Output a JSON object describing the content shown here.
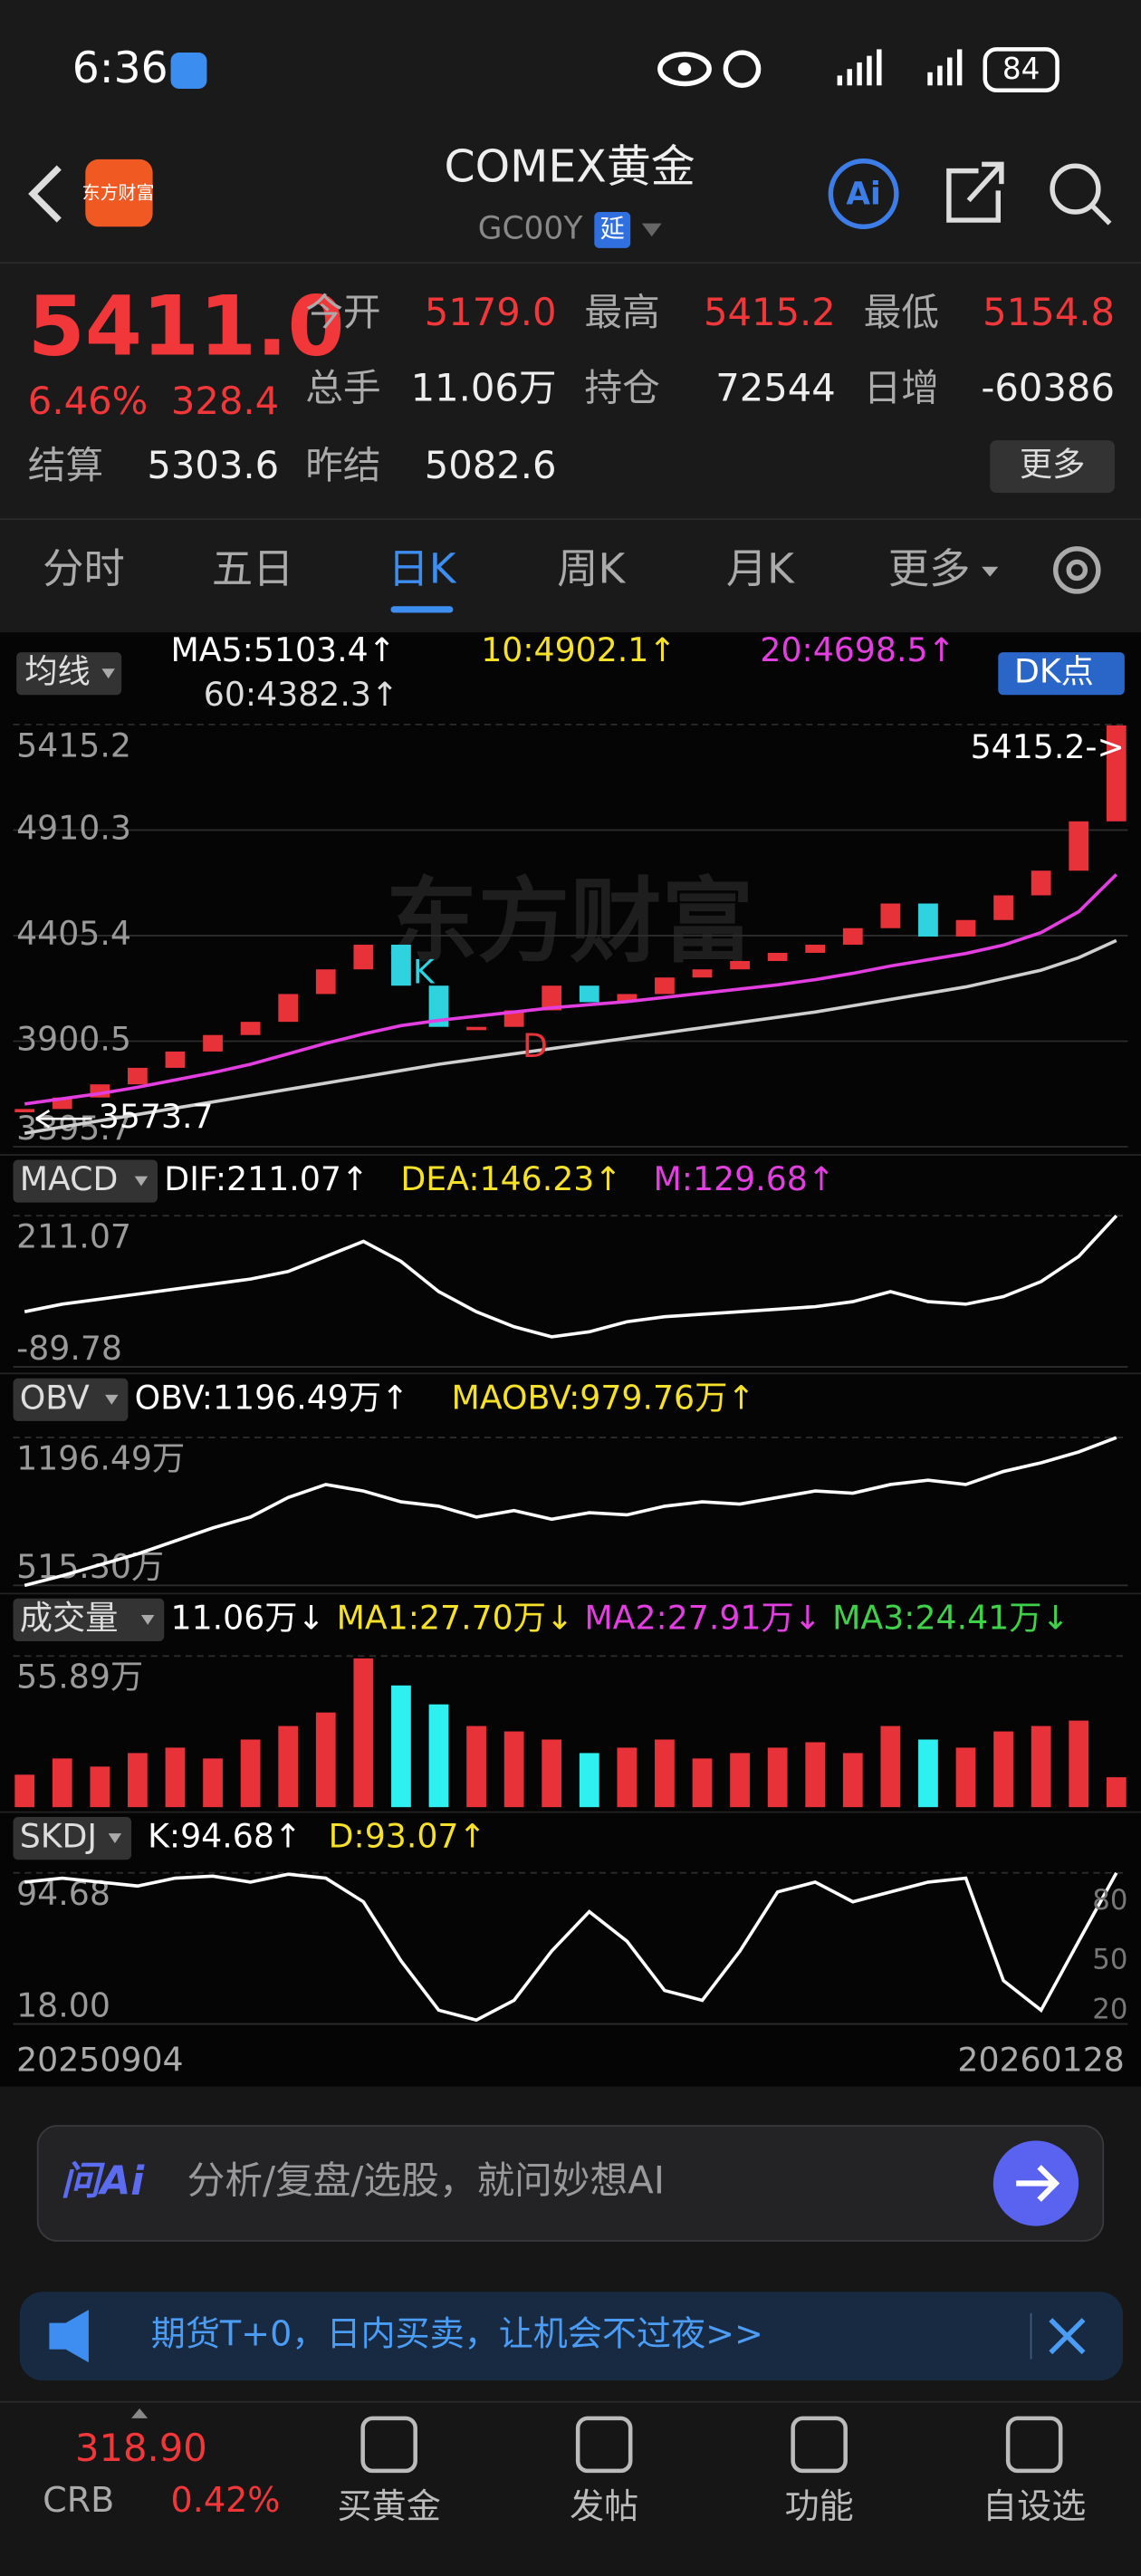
{
  "status_bar": {
    "time": "6:36",
    "battery": "84"
  },
  "header": {
    "logo": "东方财富",
    "title": "COMEX黄金",
    "code": "GC00Y",
    "delay_badge": "延"
  },
  "quote": {
    "price": "5411.0",
    "change_pct": "6.46%",
    "change": "328.4",
    "stats": [
      {
        "label": "今开",
        "value": "5179.0"
      },
      {
        "label": "最高",
        "value": "5415.2"
      },
      {
        "label": "最低",
        "value": "5154.8"
      },
      {
        "label": "总手",
        "value": "11.06万"
      },
      {
        "label": "持仓",
        "value": "72544"
      },
      {
        "label": "日增",
        "value": "-60386"
      },
      {
        "label": "结算",
        "value": "5303.6"
      },
      {
        "label": "昨结",
        "value": "5082.6"
      }
    ],
    "more_button": "更多"
  },
  "tabs": {
    "items": [
      "分时",
      "五日",
      "日K",
      "周K",
      "月K",
      "更多"
    ],
    "selected": 2
  },
  "indicators": {
    "selector": "均线",
    "ma5": "MA5:5103.4↑",
    "ma10": "10:4902.1↑",
    "ma20": "20:4698.5↑",
    "ma60": "60:4382.3↑",
    "dk_button": "DK点"
  },
  "main_chart": {
    "type": "candlestick",
    "watermark": "东方财富",
    "high_label": "5415.2->",
    "low_label": "3573.7",
    "markers": [
      "K",
      "D"
    ],
    "ylim": [
      3395.7,
      5415.2
    ],
    "yticks": [
      5415.2,
      4910.3,
      4405.4,
      3900.5,
      3395.7
    ],
    "close": [
      3576,
      3631,
      3694,
      3773,
      3851,
      3930,
      3993,
      4126,
      4244,
      4362,
      4166,
      3969,
      3969,
      4048,
      4166,
      4087,
      4126,
      4205,
      4244,
      4284,
      4323,
      4362,
      4441,
      4559,
      4401,
      4480,
      4598,
      4716,
      4952,
      5411
    ],
    "ma20": [
      3600,
      3625,
      3650,
      3680,
      3715,
      3750,
      3790,
      3840,
      3890,
      3935,
      3975,
      4000,
      4020,
      4040,
      4060,
      4075,
      4090,
      4110,
      4130,
      4150,
      4170,
      4195,
      4225,
      4260,
      4290,
      4320,
      4360,
      4420,
      4520,
      4698
    ],
    "ma60": [
      3460,
      3490,
      3520,
      3550,
      3580,
      3610,
      3640,
      3670,
      3700,
      3730,
      3760,
      3790,
      3815,
      3840,
      3865,
      3890,
      3915,
      3940,
      3965,
      3990,
      4015,
      4040,
      4070,
      4100,
      4130,
      4160,
      4200,
      4240,
      4300,
      4382
    ]
  },
  "macd": {
    "type": "line",
    "selector": "MACD",
    "legend": [
      "DIF:211.07↑",
      "DEA:146.23↑",
      "M:129.68↑"
    ],
    "ylim": [
      -89.78,
      211.07
    ],
    "yticks": [
      211.07,
      -89.78
    ],
    "dif": [
      20,
      35,
      45,
      55,
      65,
      75,
      85,
      100,
      130,
      160,
      120,
      60,
      20,
      -10,
      -30,
      -20,
      0,
      10,
      15,
      20,
      25,
      30,
      40,
      60,
      40,
      35,
      50,
      80,
      130,
      211
    ]
  },
  "obv": {
    "type": "line",
    "selector": "OBV",
    "legend": [
      "OBV:1196.49万↑",
      "MAOBV:979.76万↑"
    ],
    "ylim": [
      515.3,
      1196.49
    ],
    "yticks": [
      {
        "value": 1196.49,
        "label": "1196.49万"
      },
      {
        "value": 515.3,
        "label": "515.30万"
      }
    ],
    "values": [
      515,
      560,
      610,
      660,
      720,
      780,
      830,
      920,
      980,
      950,
      900,
      880,
      830,
      860,
      820,
      850,
      840,
      880,
      900,
      890,
      920,
      950,
      940,
      980,
      1000,
      980,
      1040,
      1080,
      1130,
      1196
    ]
  },
  "volume": {
    "type": "bar",
    "selector": "成交量",
    "legend": [
      "11.06万↓",
      "MA1:27.70万↓",
      "MA2:27.91万↓",
      "MA3:24.41万↓"
    ],
    "ylim": [
      0,
      55.89
    ],
    "yticks": [
      {
        "value": 55.89,
        "label": "55.89万"
      }
    ],
    "values": [
      12,
      18,
      15,
      20,
      22,
      18,
      25,
      30,
      35,
      55,
      45,
      38,
      30,
      28,
      25,
      20,
      22,
      25,
      18,
      20,
      22,
      24,
      20,
      30,
      25,
      22,
      28,
      30,
      32,
      11.06
    ]
  },
  "skdj": {
    "type": "line",
    "selector": "SKDJ",
    "legend": [
      "K:94.68↑",
      "D:93.07↑"
    ],
    "ylim": [
      18,
      94.68
    ],
    "yticks": [
      94.68,
      {
        "value": 18,
        "label": "18.00"
      }
    ],
    "right_ticks": [
      80,
      50,
      20
    ],
    "k": [
      90,
      92,
      90,
      88,
      92,
      93,
      90,
      94,
      92,
      80,
      50,
      25,
      20,
      30,
      55,
      75,
      60,
      35,
      30,
      55,
      85,
      90,
      80,
      85,
      90,
      92,
      40,
      25,
      60,
      94.68
    ]
  },
  "dates": [
    "20250904",
    "20260128"
  ],
  "ai_bar": {
    "logo": "问Ai",
    "placeholder": "分析/复盘/选股，就问妙想AI"
  },
  "banner": {
    "text": "期货T+0，日内买卖，让机会不过夜>>"
  },
  "bottom_nav": {
    "crb_price": "318.90",
    "crb_name": "CRB",
    "crb_change": "0.42%",
    "items": [
      "买黄金",
      "发帖",
      "功能",
      "自设选"
    ]
  }
}
